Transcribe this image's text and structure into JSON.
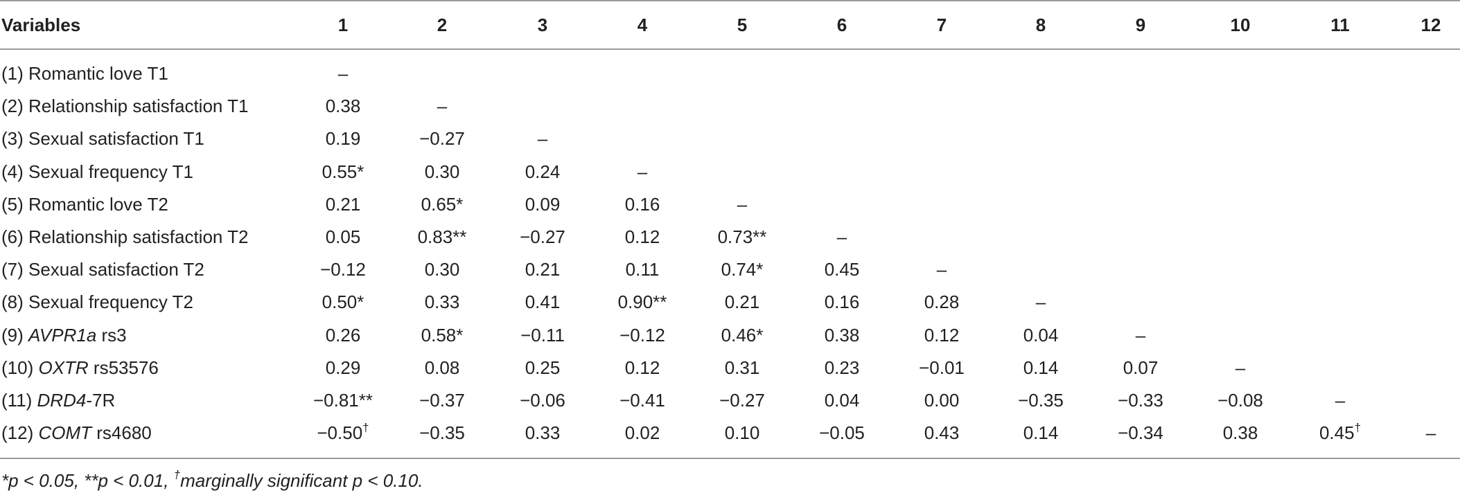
{
  "table": {
    "header": [
      "Variables",
      "1",
      "2",
      "3",
      "4",
      "5",
      "6",
      "7",
      "8",
      "9",
      "10",
      "11",
      "12"
    ],
    "rows": [
      {
        "label_prefix": "(1) ",
        "label_gene": "",
        "label_suffix": "Romantic love T1",
        "cells": [
          {
            "v": "–"
          },
          {
            "v": ""
          },
          {
            "v": ""
          },
          {
            "v": ""
          },
          {
            "v": ""
          },
          {
            "v": ""
          },
          {
            "v": ""
          },
          {
            "v": ""
          },
          {
            "v": ""
          },
          {
            "v": ""
          },
          {
            "v": ""
          },
          {
            "v": ""
          }
        ]
      },
      {
        "label_prefix": "(2) ",
        "label_gene": "",
        "label_suffix": "Relationship satisfaction T1",
        "cells": [
          {
            "v": "0.38"
          },
          {
            "v": "–"
          },
          {
            "v": ""
          },
          {
            "v": ""
          },
          {
            "v": ""
          },
          {
            "v": ""
          },
          {
            "v": ""
          },
          {
            "v": ""
          },
          {
            "v": ""
          },
          {
            "v": ""
          },
          {
            "v": ""
          },
          {
            "v": ""
          }
        ]
      },
      {
        "label_prefix": "(3) ",
        "label_gene": "",
        "label_suffix": "Sexual satisfaction T1",
        "cells": [
          {
            "v": "0.19"
          },
          {
            "v": "−0.27"
          },
          {
            "v": "–"
          },
          {
            "v": ""
          },
          {
            "v": ""
          },
          {
            "v": ""
          },
          {
            "v": ""
          },
          {
            "v": ""
          },
          {
            "v": ""
          },
          {
            "v": ""
          },
          {
            "v": ""
          },
          {
            "v": ""
          }
        ]
      },
      {
        "label_prefix": "(4) ",
        "label_gene": "",
        "label_suffix": "Sexual frequency T1",
        "cells": [
          {
            "v": "0.55*"
          },
          {
            "v": "0.30"
          },
          {
            "v": "0.24"
          },
          {
            "v": "–"
          },
          {
            "v": ""
          },
          {
            "v": ""
          },
          {
            "v": ""
          },
          {
            "v": ""
          },
          {
            "v": ""
          },
          {
            "v": ""
          },
          {
            "v": ""
          },
          {
            "v": ""
          }
        ]
      },
      {
        "label_prefix": "(5) ",
        "label_gene": "",
        "label_suffix": "Romantic love T2",
        "cells": [
          {
            "v": "0.21"
          },
          {
            "v": "0.65*"
          },
          {
            "v": "0.09"
          },
          {
            "v": "0.16"
          },
          {
            "v": "–"
          },
          {
            "v": ""
          },
          {
            "v": ""
          },
          {
            "v": ""
          },
          {
            "v": ""
          },
          {
            "v": ""
          },
          {
            "v": ""
          },
          {
            "v": ""
          }
        ]
      },
      {
        "label_prefix": "(6) ",
        "label_gene": "",
        "label_suffix": "Relationship satisfaction T2",
        "cells": [
          {
            "v": "0.05"
          },
          {
            "v": "0.83**"
          },
          {
            "v": "−0.27"
          },
          {
            "v": "0.12"
          },
          {
            "v": "0.73**"
          },
          {
            "v": "–"
          },
          {
            "v": ""
          },
          {
            "v": ""
          },
          {
            "v": ""
          },
          {
            "v": ""
          },
          {
            "v": ""
          },
          {
            "v": ""
          }
        ]
      },
      {
        "label_prefix": "(7) ",
        "label_gene": "",
        "label_suffix": "Sexual satisfaction T2",
        "cells": [
          {
            "v": "−0.12"
          },
          {
            "v": "0.30"
          },
          {
            "v": "0.21"
          },
          {
            "v": "0.11"
          },
          {
            "v": "0.74*"
          },
          {
            "v": "0.45"
          },
          {
            "v": "–"
          },
          {
            "v": ""
          },
          {
            "v": ""
          },
          {
            "v": ""
          },
          {
            "v": ""
          },
          {
            "v": ""
          }
        ]
      },
      {
        "label_prefix": "(8) ",
        "label_gene": "",
        "label_suffix": "Sexual frequency T2",
        "cells": [
          {
            "v": "0.50*"
          },
          {
            "v": "0.33"
          },
          {
            "v": "0.41"
          },
          {
            "v": "0.90**"
          },
          {
            "v": "0.21"
          },
          {
            "v": "0.16"
          },
          {
            "v": "0.28"
          },
          {
            "v": "–"
          },
          {
            "v": ""
          },
          {
            "v": ""
          },
          {
            "v": ""
          },
          {
            "v": ""
          }
        ]
      },
      {
        "label_prefix": "(9) ",
        "label_gene": "AVPR1a",
        "label_suffix": " rs3",
        "cells": [
          {
            "v": "0.26"
          },
          {
            "v": "0.58*"
          },
          {
            "v": "−0.11"
          },
          {
            "v": "−0.12"
          },
          {
            "v": "0.46*"
          },
          {
            "v": "0.38"
          },
          {
            "v": "0.12"
          },
          {
            "v": "0.04"
          },
          {
            "v": "–"
          },
          {
            "v": ""
          },
          {
            "v": ""
          },
          {
            "v": ""
          }
        ]
      },
      {
        "label_prefix": "(10) ",
        "label_gene": "OXTR",
        "label_suffix": " rs53576",
        "cells": [
          {
            "v": "0.29"
          },
          {
            "v": "0.08"
          },
          {
            "v": "0.25"
          },
          {
            "v": "0.12"
          },
          {
            "v": "0.31"
          },
          {
            "v": "0.23"
          },
          {
            "v": "−0.01"
          },
          {
            "v": "0.14"
          },
          {
            "v": "0.07"
          },
          {
            "v": "–"
          },
          {
            "v": ""
          },
          {
            "v": ""
          }
        ]
      },
      {
        "label_prefix": "(11) ",
        "label_gene": "DRD4",
        "label_suffix": "-7R",
        "cells": [
          {
            "v": "−0.81**"
          },
          {
            "v": "−0.37"
          },
          {
            "v": "−0.06"
          },
          {
            "v": "−0.41"
          },
          {
            "v": "−0.27"
          },
          {
            "v": "0.04"
          },
          {
            "v": "0.00"
          },
          {
            "v": "−0.35"
          },
          {
            "v": "−0.33"
          },
          {
            "v": "−0.08"
          },
          {
            "v": "–"
          },
          {
            "v": ""
          }
        ]
      },
      {
        "label_prefix": "(12) ",
        "label_gene": "COMT",
        "label_suffix": " rs4680",
        "cells": [
          {
            "v": "−0.50",
            "sup": "†"
          },
          {
            "v": "−0.35"
          },
          {
            "v": "0.33"
          },
          {
            "v": "0.02"
          },
          {
            "v": "0.10"
          },
          {
            "v": "−0.05"
          },
          {
            "v": "0.43"
          },
          {
            "v": "0.14"
          },
          {
            "v": "−0.34"
          },
          {
            "v": "0.38"
          },
          {
            "v": "0.45",
            "sup": "†"
          },
          {
            "v": "–"
          }
        ]
      }
    ]
  },
  "footnote": {
    "part1": "*p < 0.05, **p < 0.01, ",
    "dagger": "†",
    "part2": "marginally significant p < 0.10."
  }
}
